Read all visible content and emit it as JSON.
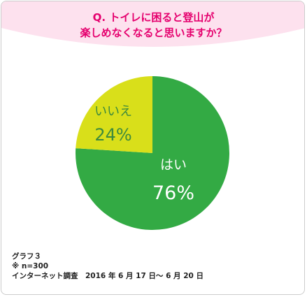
{
  "colors": {
    "header_bg": "#fde1ee",
    "question_text": "#e5006e",
    "yes_slice": "#33aa44",
    "no_slice": "#d9df1a",
    "label_on_yes": "#ffffff",
    "label_on_no": "#3d8a3d"
  },
  "question": {
    "line1": "Q. トイレに困ると登山が",
    "line2": "楽しめなくなると思いますか？"
  },
  "chart_data": {
    "type": "pie",
    "title": "Q. トイレに困ると登山が楽しめなくなると思いますか？",
    "labels": [
      "はい",
      "いいえ"
    ],
    "values": [
      76,
      24
    ],
    "value_labels": [
      "76%",
      "24%"
    ],
    "units": "%"
  },
  "footnote": {
    "line1": "グラフ３",
    "line2": "※ n=300",
    "line3": "インターネット調査　2016 年 6 月 17 日～ 6 月 20 日"
  }
}
